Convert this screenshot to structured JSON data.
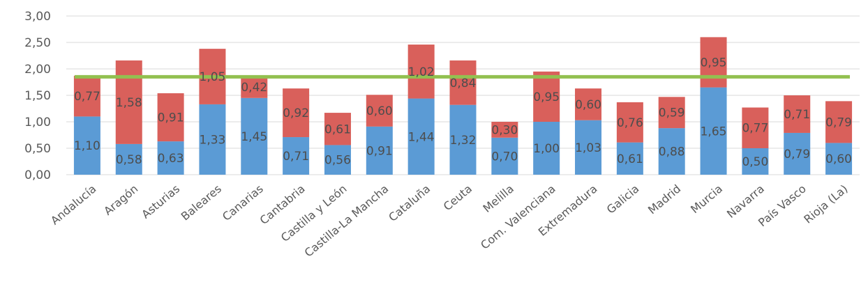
{
  "chart_data": {
    "type": "bar",
    "stacked": true,
    "categories": [
      "Andalucía",
      "Aragón",
      "Asturias",
      "Baleares",
      "Canarias",
      "Cantabria",
      "Castilla y León",
      "Castilla-La Mancha",
      "Cataluña",
      "Ceuta",
      "Melilla",
      "Com. Valenciana",
      "Extremadura",
      "Galicia",
      "Madrid",
      "Murcia",
      "Navarra",
      "País Vasco",
      "Rioja (La)"
    ],
    "series": [
      {
        "values": [
          1.1,
          0.58,
          0.63,
          1.33,
          1.45,
          0.71,
          0.56,
          0.91,
          1.44,
          1.32,
          0.7,
          1.0,
          1.03,
          0.61,
          0.88,
          1.65,
          0.5,
          0.79,
          0.6
        ],
        "labels": [
          "1,10",
          "0,58",
          "0,63",
          "1,33",
          "1,45",
          "0,71",
          "0,56",
          "0,91",
          "1,44",
          "1,32",
          "0,70",
          "1,00",
          "1,03",
          "0,61",
          "0,88",
          "1,65",
          "0,50",
          "0,79",
          "0,60"
        ],
        "color": "#5b9bd5"
      },
      {
        "values": [
          0.77,
          1.58,
          0.91,
          1.05,
          0.42,
          0.92,
          0.61,
          0.6,
          1.02,
          0.84,
          0.3,
          0.95,
          0.6,
          0.76,
          0.59,
          0.95,
          0.77,
          0.71,
          0.79
        ],
        "labels": [
          "0,77",
          "1,58",
          "0,91",
          "1,05",
          "0,42",
          "0,92",
          "0,61",
          "0,60",
          "1,02",
          "0,84",
          "0,30",
          "0,95",
          "0,60",
          "0,76",
          "0,59",
          "0,95",
          "0,77",
          "0,71",
          "0,79"
        ],
        "color": "#d9605b"
      }
    ],
    "reference_line": {
      "value": 1.85,
      "color": "#92c050"
    },
    "ylim": [
      0,
      3
    ],
    "yticks": [
      0,
      0.5,
      1.0,
      1.5,
      2.0,
      2.5,
      3.0
    ],
    "ytick_labels": [
      "0,00",
      "0,50",
      "1,00",
      "1,50",
      "2,00",
      "2,50",
      "3,00"
    ],
    "grid": true,
    "title": "",
    "xlabel": "",
    "ylabel": ""
  }
}
